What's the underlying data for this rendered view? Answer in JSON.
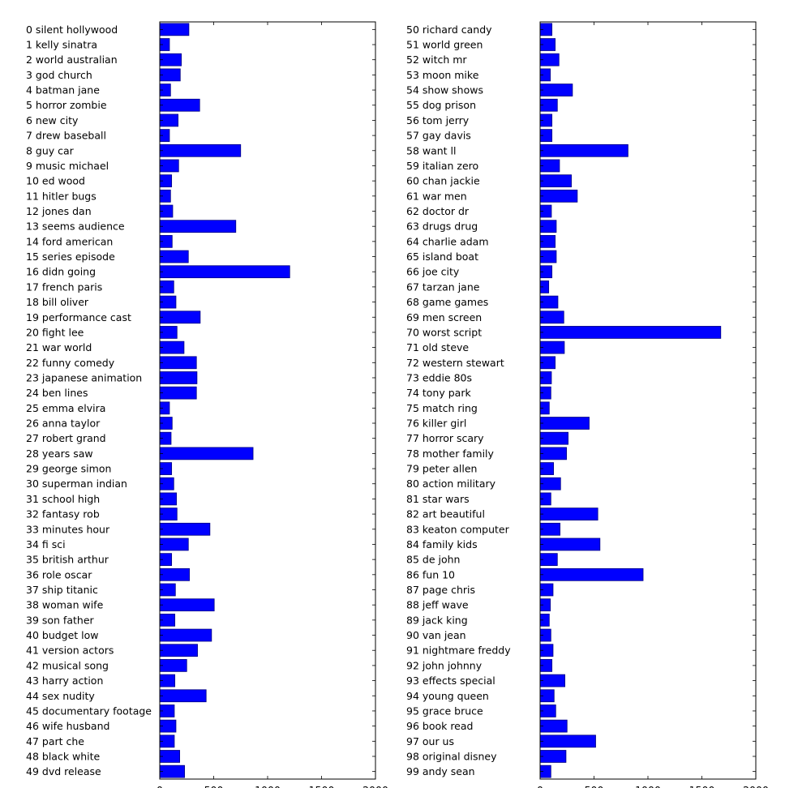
{
  "chart_data": [
    {
      "type": "bar",
      "orientation": "horizontal",
      "bar_color": "#0000ff",
      "bar_edge_color": "#000080",
      "xlim": [
        0,
        2000
      ],
      "xticks": [
        "0",
        "500",
        "1000",
        "1500",
        "2000"
      ],
      "grid": false,
      "categories": [
        "0 silent hollywood",
        "1 kelly sinatra",
        "2 world australian",
        "3 god church",
        "4 batman jane",
        "5 horror zombie",
        "6 new city",
        "7 drew baseball",
        "8 guy car",
        "9 music michael",
        "10 ed wood",
        "11 hitler bugs",
        "12 jones dan",
        "13 seems audience",
        "14 ford american",
        "15 series episode",
        "16 didn going",
        "17 french paris",
        "18 bill oliver",
        "19 performance cast",
        "20 fight lee",
        "21 war world",
        "22 funny comedy",
        "23 japanese animation",
        "24 ben lines",
        "25 emma elvira",
        "26 anna taylor",
        "27 robert grand",
        "28 years saw",
        "29 george simon",
        "30 superman indian",
        "31 school high",
        "32 fantasy rob",
        "33 minutes hour",
        "34 fi sci",
        "35 british arthur",
        "36 role oscar",
        "37 ship titanic",
        "38 woman wife",
        "39 son father",
        "40 budget low",
        "41 version actors",
        "42 musical song",
        "43 harry action",
        "44 sex nudity",
        "45 documentary footage",
        "46 wife husband",
        "47 part che",
        "48 black white",
        "49 dvd release"
      ],
      "values": [
        270,
        90,
        200,
        190,
        100,
        370,
        170,
        90,
        750,
        175,
        110,
        100,
        120,
        705,
        115,
        265,
        1205,
        130,
        150,
        375,
        160,
        225,
        340,
        345,
        340,
        90,
        115,
        105,
        865,
        110,
        130,
        155,
        160,
        465,
        265,
        110,
        275,
        145,
        505,
        140,
        480,
        350,
        250,
        140,
        430,
        135,
        150,
        135,
        185,
        230
      ]
    },
    {
      "type": "bar",
      "orientation": "horizontal",
      "bar_color": "#0000ff",
      "bar_edge_color": "#000080",
      "xlim": [
        0,
        2000
      ],
      "xticks": [
        "0",
        "500",
        "1000",
        "1500",
        "2000"
      ],
      "grid": false,
      "categories": [
        "50 richard candy",
        "51 world green",
        "52 witch mr",
        "53 moon mike",
        "54 show shows",
        "55 dog prison",
        "56 tom jerry",
        "57 gay davis",
        "58 want ll",
        "59 italian zero",
        "60 chan jackie",
        "61 war men",
        "62 doctor dr",
        "63 drugs drug",
        "64 charlie adam",
        "65 island boat",
        "66 joe city",
        "67 tarzan jane",
        "68 game games",
        "69 men screen",
        "70 worst script",
        "71 old steve",
        "72 western stewart",
        "73 eddie 80s",
        "74 tony park",
        "75 match ring",
        "76 killer girl",
        "77 horror scary",
        "78 mother family",
        "79 peter allen",
        "80 action military",
        "81 star wars",
        "82 art beautiful",
        "83 keaton computer",
        "84 family kids",
        "85 de john",
        "86 fun 10",
        "87 page chris",
        "88 jeff wave",
        "89 jack king",
        "90 van jean",
        "91 nightmare freddy",
        "92 john johnny",
        "93 effects special",
        "94 young queen",
        "95 grace bruce",
        "96 book read",
        "97 our us",
        "98 original disney",
        "99 andy sean"
      ],
      "values": [
        110,
        140,
        175,
        95,
        300,
        160,
        110,
        110,
        815,
        180,
        290,
        345,
        105,
        150,
        140,
        150,
        110,
        80,
        165,
        220,
        1675,
        225,
        140,
        105,
        100,
        85,
        455,
        260,
        245,
        125,
        190,
        100,
        535,
        185,
        555,
        160,
        955,
        120,
        95,
        85,
        100,
        120,
        110,
        230,
        130,
        145,
        250,
        515,
        240,
        100
      ]
    }
  ]
}
